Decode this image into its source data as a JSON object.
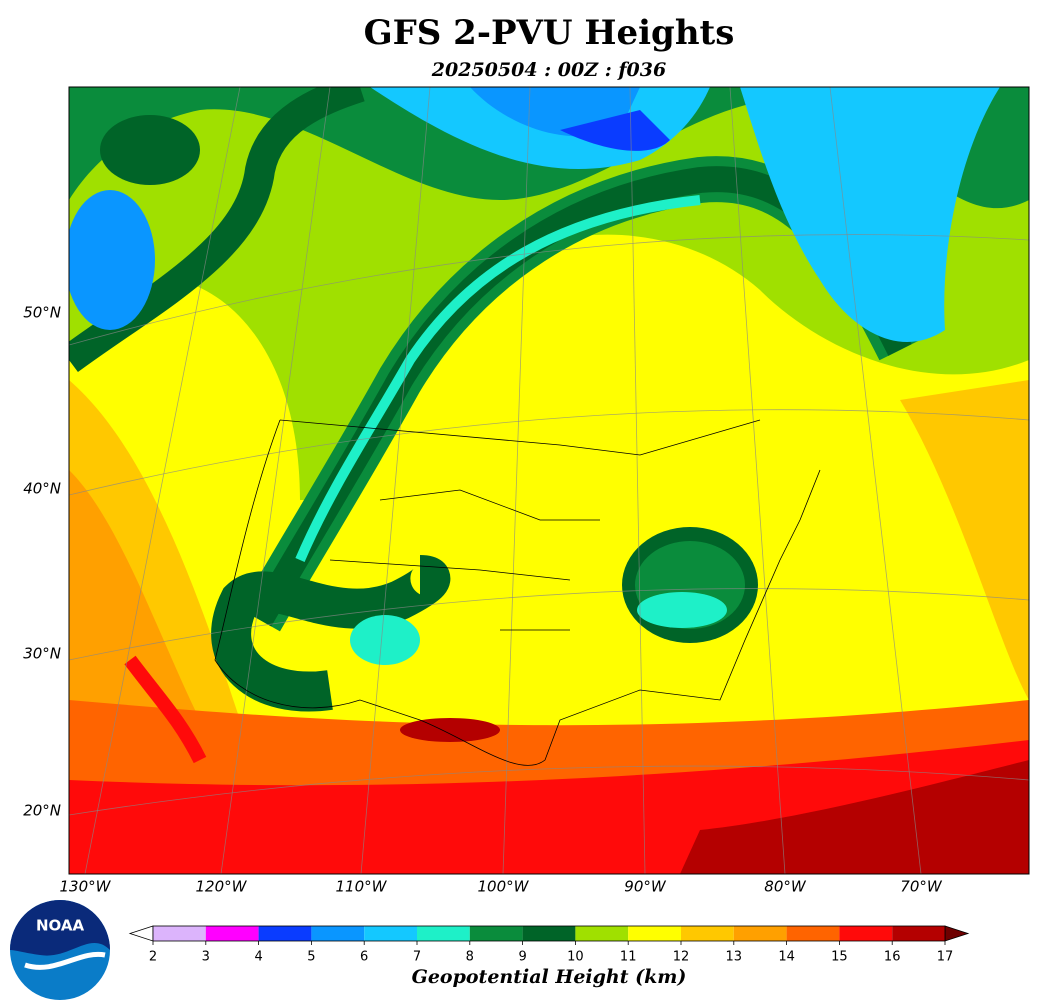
{
  "header": {
    "title": "GFS 2-PVU Heights",
    "subtitle": "20250504 : 00Z : f036"
  },
  "map": {
    "lat_labels": [
      "50°N",
      "40°N",
      "30°N",
      "20°N"
    ],
    "lon_labels": [
      "130°W",
      "120°W",
      "110°W",
      "100°W",
      "90°W",
      "80°W",
      "70°W"
    ]
  },
  "colorbar": {
    "ticks": [
      2,
      3,
      4,
      5,
      6,
      7,
      8,
      9,
      10,
      11,
      12,
      13,
      14,
      15,
      16,
      17
    ],
    "colors": [
      "#dcb4fc",
      "#ff00ff",
      "#0a3cff",
      "#0a96ff",
      "#14c8ff",
      "#1ef0c8",
      "#0a8c3c",
      "#006428",
      "#a0e000",
      "#ffff00",
      "#ffc800",
      "#ffa000",
      "#ff6400",
      "#ff0a0a",
      "#b40000"
    ],
    "under_color": "#ffffff",
    "over_color": "#6e0000",
    "label": "Geopotential Height (km)"
  },
  "logo": {
    "text": "NOAA"
  }
}
